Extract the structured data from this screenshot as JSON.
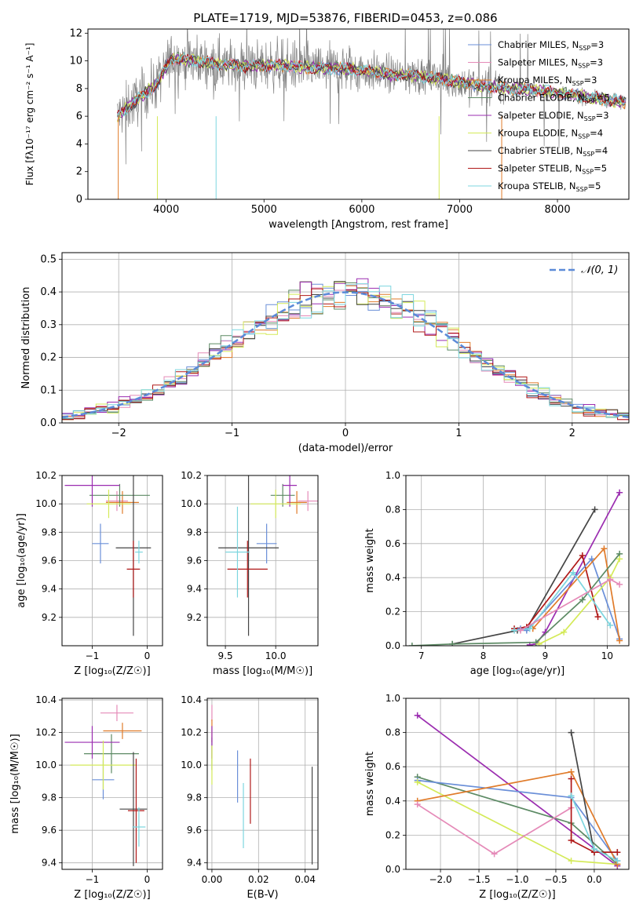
{
  "title": "PLATE=1719, MJD=53876, FIBERID=0453, z=0.086",
  "colors": {
    "Chabrier MILES": "#6a8fd8",
    "Salpeter MILES": "#e58ab8",
    "Kroupa MILES": "#e07b2a",
    "Chabrier ELODIE": "#5c8a64",
    "Salpeter ELODIE": "#9b2db0",
    "Kroupa ELODIE": "#d4ea58",
    "Chabrier STELIB": "#454545",
    "Salpeter STELIB": "#b01818",
    "Kroupa STELIB": "#7dd6df",
    "data": "#808080"
  },
  "chart_data": [
    {
      "id": "spectrum",
      "type": "line",
      "title": "PLATE=1719, MJD=53876, FIBERID=0453, z=0.086",
      "xlabel": "wavelength [Angstrom, rest frame]",
      "ylabel": "Flux [fλ10⁻¹⁷ erg cm⁻² s⁻¹ A⁻¹]",
      "xlim": [
        3200,
        8730
      ],
      "ylim": [
        0,
        12.3
      ],
      "xticks": [
        "4000",
        "5000",
        "6000",
        "7000",
        "8000"
      ],
      "yticks": [
        "0",
        "2",
        "4",
        "6",
        "8",
        "10",
        "12"
      ],
      "grid": false,
      "legend": {
        "placement": "top-right",
        "entries": [
          {
            "model": "Chabrier MILES",
            "label": "Chabrier MILES, N",
            "sub": "SSP",
            "n": "=3"
          },
          {
            "model": "Salpeter MILES",
            "label": "Salpeter MILES, N",
            "sub": "SSP",
            "n": "=3"
          },
          {
            "model": "Kroupa MILES",
            "label": "Kroupa MILES, N",
            "sub": "SSP",
            "n": "=3"
          },
          {
            "model": "Chabrier ELODIE",
            "label": "Chabrier ELODIE, N",
            "sub": "SSP",
            "n": "=5"
          },
          {
            "model": "Salpeter ELODIE",
            "label": "Salpeter ELODIE, N",
            "sub": "SSP",
            "n": "=3"
          },
          {
            "model": "Kroupa ELODIE",
            "label": "Kroupa ELODIE, N",
            "sub": "SSP",
            "n": "=4"
          },
          {
            "model": "Chabrier STELIB",
            "label": "Chabrier STELIB, N",
            "sub": "SSP",
            "n": "=4"
          },
          {
            "model": "Salpeter STELIB",
            "label": "Salpeter STELIB, N",
            "sub": "SSP",
            "n": "=5"
          },
          {
            "model": "Kroupa STELIB",
            "label": "Kroupa STELIB, N",
            "sub": "SSP",
            "n": "=5"
          }
        ]
      },
      "data_envelope": {
        "x": [
          3500,
          3700,
          3900,
          4050,
          4300,
          4500,
          4800,
          5100,
          5500,
          5900,
          6300,
          6600,
          6900,
          7200,
          7500,
          7800,
          8100,
          8400,
          8700
        ],
        "y": [
          6.0,
          7.2,
          8.3,
          10.2,
          10.0,
          9.8,
          9.6,
          9.7,
          9.5,
          9.4,
          9.0,
          8.9,
          8.6,
          8.2,
          8.0,
          7.9,
          7.6,
          7.3,
          7.0
        ]
      }
    },
    {
      "id": "residuals",
      "type": "bar",
      "xlabel": "(data-model)/error",
      "ylabel": "Normed distribution",
      "xlim": [
        -2.5,
        2.5
      ],
      "ylim": [
        0,
        0.52
      ],
      "xticks": [
        "−2",
        "−1",
        "0",
        "1",
        "2"
      ],
      "yticks": [
        "0.0",
        "0.1",
        "0.2",
        "0.3",
        "0.4",
        "0.5"
      ],
      "grid": true,
      "legend": {
        "placement": "top-right",
        "label": "𝒩(0, 1)"
      },
      "bin_width": 0.1,
      "reference": "normal"
    },
    {
      "id": "age-vs-Z",
      "type": "scatter",
      "xlabel": "Z [log₁₀(Z/Z☉)]",
      "ylabel": "age  [log₁₀(age/yr)]",
      "xlim": [
        -1.55,
        0.28
      ],
      "ylim": [
        9.0,
        10.2
      ],
      "xticks": [
        "−1",
        "0"
      ],
      "yticks": [
        "9.2",
        "9.4",
        "9.6",
        "9.8",
        "10.0",
        "10.2"
      ],
      "grid": true,
      "points": [
        {
          "model": "Chabrier MILES",
          "x": -0.85,
          "y": 9.72,
          "xerr": 0.15,
          "yerr": 0.14
        },
        {
          "model": "Salpeter MILES",
          "x": -0.55,
          "y": 10.02,
          "xerr": 0.2,
          "yerr": 0.07
        },
        {
          "model": "Kroupa MILES",
          "x": -0.45,
          "y": 10.01,
          "xerr": 0.3,
          "yerr": 0.08
        },
        {
          "model": "Chabrier ELODIE",
          "x": -0.5,
          "y": 10.06,
          "xerr": 0.55,
          "yerr": 0.08
        },
        {
          "model": "Salpeter ELODIE",
          "x": -1.0,
          "y": 10.13,
          "xerr": 0.5,
          "yerr": 0.15
        },
        {
          "model": "Kroupa ELODIE",
          "x": -0.7,
          "y": 10.0,
          "xerr": 0.4,
          "yerr": 0.1
        },
        {
          "model": "Chabrier STELIB",
          "x": -0.25,
          "y": 9.69,
          "xerr": 0.32,
          "yerr": 0.62
        },
        {
          "model": "Salpeter STELIB",
          "x": -0.25,
          "y": 9.54,
          "xerr": 0.12,
          "yerr": 0.2
        },
        {
          "model": "Kroupa STELIB",
          "x": -0.15,
          "y": 9.66,
          "xerr": 0.07,
          "yerr": 0.08
        }
      ]
    },
    {
      "id": "age-vs-mass",
      "type": "scatter",
      "xlabel": "mass [log₁₀(M/M☉)]",
      "ylabel": "",
      "xlim": [
        9.32,
        10.42
      ],
      "ylim": [
        9.0,
        10.2
      ],
      "xticks": [
        "9.5",
        "10.0"
      ],
      "yticks": [
        "9.2",
        "9.4",
        "9.6",
        "9.8",
        "10.0",
        "10.2"
      ],
      "grid": true,
      "points": [
        {
          "model": "Chabrier MILES",
          "x": 9.91,
          "y": 9.72,
          "xerr": 0.1,
          "yerr": 0.14
        },
        {
          "model": "Salpeter MILES",
          "x": 10.32,
          "y": 10.02,
          "xerr": 0.1,
          "yerr": 0.07
        },
        {
          "model": "Kroupa MILES",
          "x": 10.21,
          "y": 10.01,
          "xerr": 0.1,
          "yerr": 0.08
        },
        {
          "model": "Chabrier ELODIE",
          "x": 10.07,
          "y": 10.06,
          "xerr": 0.12,
          "yerr": 0.08
        },
        {
          "model": "Salpeter ELODIE",
          "x": 10.14,
          "y": 10.13,
          "xerr": 0.07,
          "yerr": 0.15
        },
        {
          "model": "Kroupa ELODIE",
          "x": 10.0,
          "y": 10.0,
          "xerr": 0.25,
          "yerr": 0.1
        },
        {
          "model": "Chabrier STELIB",
          "x": 9.73,
          "y": 9.69,
          "xerr": 0.3,
          "yerr": 0.62
        },
        {
          "model": "Salpeter STELIB",
          "x": 9.72,
          "y": 9.54,
          "xerr": 0.2,
          "yerr": 0.2
        },
        {
          "model": "Kroupa STELIB",
          "x": 9.62,
          "y": 9.66,
          "xerr": 0.12,
          "yerr": 0.32
        }
      ]
    },
    {
      "id": "weight-vs-age",
      "type": "line",
      "xlabel": "age  [log₁₀(age/yr)]",
      "ylabel": "mass weight",
      "xlim": [
        6.75,
        10.35
      ],
      "ylim": [
        0,
        1.0
      ],
      "xticks": [
        "7",
        "8",
        "9",
        "10"
      ],
      "yticks": [
        "0.0",
        "0.2",
        "0.4",
        "0.6",
        "0.8",
        "1.0"
      ],
      "grid": true,
      "series": [
        {
          "model": "Chabrier STELIB",
          "x": [
            7.5,
            8.55,
            8.7,
            9.8
          ],
          "y": [
            0.01,
            0.09,
            0.1,
            0.8
          ]
        },
        {
          "model": "Salpeter ELODIE",
          "x": [
            8.75,
            8.85,
            9.0,
            10.2
          ],
          "y": [
            0.005,
            0.01,
            0.08,
            0.9
          ]
        },
        {
          "model": "Salpeter STELIB",
          "x": [
            8.5,
            8.7,
            9.6,
            9.85
          ],
          "y": [
            0.1,
            0.11,
            0.53,
            0.17
          ]
        },
        {
          "model": "Chabrier MILES",
          "x": [
            8.6,
            8.7,
            9.75,
            10.2
          ],
          "y": [
            0.1,
            0.09,
            0.51,
            0.04
          ]
        },
        {
          "model": "Kroupa MILES",
          "x": [
            8.8,
            9.95,
            10.2
          ],
          "y": [
            0.1,
            0.57,
            0.03
          ]
        },
        {
          "model": "Chabrier ELODIE",
          "x": [
            6.85,
            7.5,
            8.85,
            9.6,
            10.2
          ],
          "y": [
            0.0,
            0.01,
            0.02,
            0.27,
            0.54
          ]
        },
        {
          "model": "Kroupa ELODIE",
          "x": [
            8.9,
            9.3,
            10.05,
            10.2
          ],
          "y": [
            0.01,
            0.08,
            0.4,
            0.51
          ]
        },
        {
          "model": "Kroupa STELIB",
          "x": [
            8.5,
            8.75,
            9.45,
            10.05
          ],
          "y": [
            0.09,
            0.1,
            0.43,
            0.12
          ]
        },
        {
          "model": "Salpeter MILES",
          "x": [
            8.6,
            10.05,
            10.2
          ],
          "y": [
            0.09,
            0.39,
            0.36
          ]
        }
      ]
    },
    {
      "id": "mass-vs-Z",
      "type": "scatter",
      "xlabel": "Z [log₁₀(Z/Z☉)]",
      "ylabel": "mass [log₁₀(M/M☉)]",
      "xlim": [
        -1.55,
        0.28
      ],
      "ylim": [
        9.36,
        10.41
      ],
      "xticks": [
        "−1",
        "0"
      ],
      "yticks": [
        "9.4",
        "9.6",
        "9.8",
        "10.0",
        "10.2",
        "10.4"
      ],
      "grid": true,
      "points": [
        {
          "model": "Chabrier MILES",
          "x": -0.8,
          "y": 9.91,
          "xerr": 0.2,
          "yerr": 0.12
        },
        {
          "model": "Salpeter MILES",
          "x": -0.55,
          "y": 10.32,
          "xerr": 0.3,
          "yerr": 0.05
        },
        {
          "model": "Kroupa MILES",
          "x": -0.45,
          "y": 10.21,
          "xerr": 0.35,
          "yerr": 0.05
        },
        {
          "model": "Chabrier ELODIE",
          "x": -0.65,
          "y": 10.07,
          "xerr": 0.5,
          "yerr": 0.12
        },
        {
          "model": "Salpeter ELODIE",
          "x": -1.0,
          "y": 10.14,
          "xerr": 0.5,
          "yerr": 0.1
        },
        {
          "model": "Kroupa ELODIE",
          "x": -0.8,
          "y": 10.0,
          "xerr": 0.6,
          "yerr": 0.15
        },
        {
          "model": "Chabrier STELIB",
          "x": -0.25,
          "y": 9.73,
          "xerr": 0.25,
          "yerr": 0.35
        },
        {
          "model": "Salpeter STELIB",
          "x": -0.2,
          "y": 9.72,
          "xerr": 0.15,
          "yerr": 0.32
        },
        {
          "model": "Kroupa STELIB",
          "x": -0.15,
          "y": 9.62,
          "xerr": 0.12,
          "yerr": 0.12
        }
      ]
    },
    {
      "id": "mass-vs-ebv",
      "type": "scatter",
      "xlabel": "E(B-V)",
      "ylabel": "",
      "xlim": [
        -0.002,
        0.0455
      ],
      "ylim": [
        9.36,
        10.41
      ],
      "xticks": [
        "0.00",
        "0.02",
        "0.04"
      ],
      "yticks": [
        "9.4",
        "9.6",
        "9.8",
        "10.0",
        "10.2",
        "10.4"
      ],
      "grid": true,
      "points": [
        {
          "model": "Salpeter MILES",
          "x": 0.0,
          "y": 10.32,
          "xerr": 0,
          "yerr": 0.05
        },
        {
          "model": "Kroupa MILES",
          "x": 0.0,
          "y": 10.21,
          "xerr": 0,
          "yerr": 0.07
        },
        {
          "model": "Chabrier ELODIE",
          "x": 0.0,
          "y": 10.07,
          "xerr": 0,
          "yerr": 0.1
        },
        {
          "model": "Salpeter ELODIE",
          "x": 0.0,
          "y": 10.14,
          "xerr": 0,
          "yerr": 0.1
        },
        {
          "model": "Kroupa ELODIE",
          "x": 0.0,
          "y": 10.0,
          "xerr": 0,
          "yerr": 0.12
        },
        {
          "model": "Chabrier MILES",
          "x": 0.011,
          "y": 9.93,
          "xerr": 0,
          "yerr": 0.16
        },
        {
          "model": "Kroupa STELIB",
          "x": 0.0135,
          "y": 9.69,
          "xerr": 0,
          "yerr": 0.2
        },
        {
          "model": "Salpeter STELIB",
          "x": 0.0165,
          "y": 9.84,
          "xerr": 0,
          "yerr": 0.2
        },
        {
          "model": "Chabrier STELIB",
          "x": 0.043,
          "y": 9.69,
          "xerr": 0,
          "yerr": 0.3
        }
      ]
    },
    {
      "id": "weight-vs-Z",
      "type": "line",
      "xlabel": "Z [log₁₀(Z/Z☉)]",
      "ylabel": "mass weight",
      "xlim": [
        -2.45,
        0.45
      ],
      "ylim": [
        0,
        1.0
      ],
      "xticks": [
        "−2.0",
        "−1.5",
        "−1.0",
        "−0.5",
        "0.0"
      ],
      "yticks": [
        "0.0",
        "0.2",
        "0.4",
        "0.6",
        "0.8",
        "1.0"
      ],
      "grid": true,
      "series": [
        {
          "model": "Salpeter ELODIE",
          "x": [
            -2.3,
            0.3
          ],
          "y": [
            0.9,
            0.02
          ]
        },
        {
          "model": "Chabrier ELODIE",
          "x": [
            -2.3,
            -0.3,
            0.3
          ],
          "y": [
            0.54,
            0.27,
            0.03
          ]
        },
        {
          "model": "Chabrier MILES",
          "x": [
            -2.3,
            -0.3,
            0.3
          ],
          "y": [
            0.52,
            0.42,
            0.05
          ]
        },
        {
          "model": "Kroupa ELODIE",
          "x": [
            -2.3,
            -0.3,
            0.3
          ],
          "y": [
            0.51,
            0.05,
            0.03
          ]
        },
        {
          "model": "Kroupa MILES",
          "x": [
            -2.3,
            -0.3,
            0.3
          ],
          "y": [
            0.4,
            0.57,
            0.03
          ]
        },
        {
          "model": "Salpeter MILES",
          "x": [
            -2.3,
            -1.3,
            -0.3
          ],
          "y": [
            0.38,
            0.09,
            0.36
          ]
        },
        {
          "model": "Chabrier STELIB",
          "x": [
            -0.3,
            0.0,
            0.3
          ],
          "y": [
            0.8,
            0.1,
            0.1
          ]
        },
        {
          "model": "Salpeter STELIB",
          "x": [
            -0.3,
            -0.3,
            0.0,
            0.3
          ],
          "y": [
            0.53,
            0.17,
            0.1,
            0.1
          ]
        },
        {
          "model": "Kroupa STELIB",
          "x": [
            -0.3,
            0.0,
            0.3
          ],
          "y": [
            0.43,
            0.12,
            0.05
          ]
        }
      ]
    }
  ]
}
